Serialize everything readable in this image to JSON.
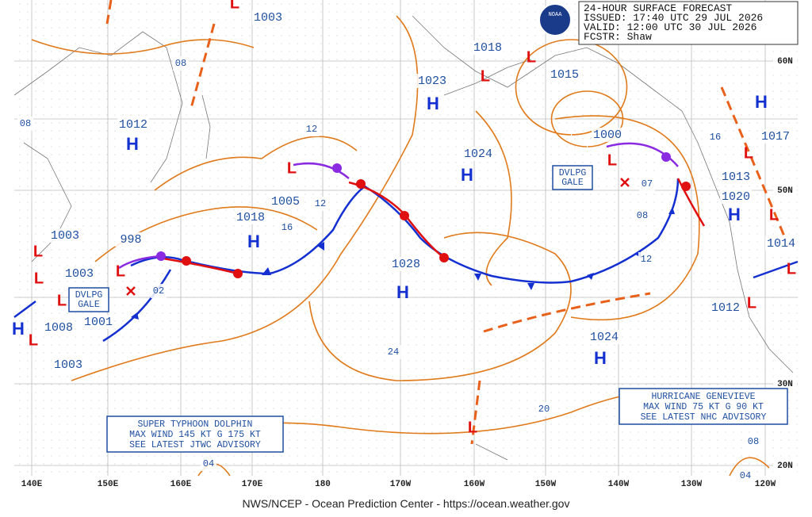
{
  "header": {
    "logo": "NOAA",
    "lines": [
      "24-HOUR SURFACE FORECAST",
      "ISSUED: 17:40 UTC 29 JUL 2026",
      "VALID:  12:00 UTC 30 JUL 2026",
      "FCSTR:  Shaw"
    ]
  },
  "pressure_labels": [
    "1003",
    "1018",
    "1015",
    "1023",
    "1012",
    "1000",
    "1017",
    "1024",
    "1013",
    "1020",
    "1005",
    "1018",
    "1003",
    "998",
    "1014",
    "1003",
    "1028",
    "1012",
    "1001",
    "1008",
    "1024",
    "1003"
  ],
  "highs": [
    "H",
    "H",
    "H",
    "H",
    "H",
    "H",
    "H",
    "H",
    "H"
  ],
  "lows": [
    "L",
    "L",
    "L",
    "L",
    "L",
    "L",
    "L",
    "L",
    "L",
    "L",
    "L",
    "L",
    "L",
    "L",
    "L"
  ],
  "isobar_labels": [
    "08",
    "08",
    "12",
    "12",
    "16",
    "16",
    "08",
    "12",
    "24",
    "20",
    "04",
    "08",
    "04",
    "02",
    "07"
  ],
  "latitude_labels": [
    "60N",
    "50N",
    "30N",
    "20N"
  ],
  "longitude_labels": [
    "140E",
    "150E",
    "160E",
    "170E",
    "180",
    "170W",
    "160W",
    "150W",
    "140W",
    "130W",
    "120W"
  ],
  "gale_boxes": [
    [
      "DVLPG",
      "GALE"
    ],
    [
      "DVLPG",
      "GALE"
    ]
  ],
  "typhoon_box": [
    "SUPER TYPHOON DOLPHIN",
    "MAX WIND 145 KT G 175 KT",
    "SEE LATEST JTWC ADVISORY"
  ],
  "hurricane_box": [
    "HURRICANE GENEVIEVE",
    "MAX WIND 75 KT G 90 KT",
    "SEE LATEST NHC ADVISORY"
  ],
  "footer": "NWS/NCEP - Ocean Prediction Center - https://ocean.weather.gov"
}
